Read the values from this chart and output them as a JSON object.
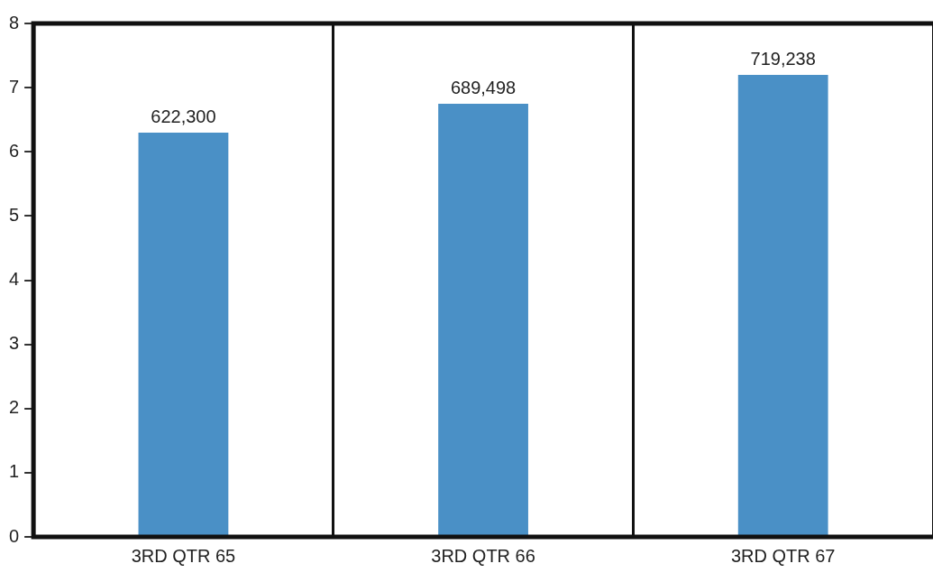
{
  "chart_data": {
    "type": "bar",
    "categories": [
      "3RD QTR 65",
      "3RD QTR 66",
      "3RD QTR 67"
    ],
    "values": [
      6.3,
      6.75,
      7.2
    ],
    "annotations": [
      {
        "text": "622,300",
        "x": "3RD QTR 65",
        "y": 6.3
      },
      {
        "text": "689,498",
        "x": "3RD QTR 66",
        "y": 6.75
      },
      {
        "text": "719,238",
        "x": "3RD QTR 67",
        "y": 7.2
      }
    ],
    "color": "#4a90c6",
    "ylim": [
      0,
      8
    ],
    "yticks": [
      0,
      1,
      2,
      3,
      4,
      5,
      6,
      7,
      8
    ],
    "grid": "x",
    "legend": false
  }
}
